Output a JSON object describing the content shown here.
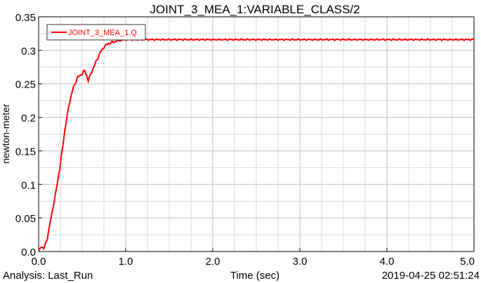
{
  "chart_data": {
    "type": "line",
    "title": "JOINT_3_MEA_1:VARIABLE_CLASS/2",
    "xlabel": "Time (sec)",
    "ylabel": "newton-meter",
    "xlim": [
      0,
      5
    ],
    "ylim": [
      0,
      0.35
    ],
    "x_ticks": [
      "0.0",
      "1.0",
      "2.0",
      "3.0",
      "4.0",
      "5.0"
    ],
    "y_ticks": [
      "0.0",
      "0.05",
      "0.1",
      "0.15",
      "0.2",
      "0.25",
      "0.3",
      "0.35"
    ],
    "grid": true,
    "legend_position": "top-left",
    "series": [
      {
        "name": "JOINT_3_MEA_1.Q",
        "color": "#ff0000",
        "x": [
          0.0,
          0.03,
          0.06,
          0.1,
          0.15,
          0.2,
          0.25,
          0.3,
          0.35,
          0.4,
          0.45,
          0.5,
          0.53,
          0.57,
          0.6,
          0.65,
          0.7,
          0.75,
          0.8,
          0.85,
          0.9,
          0.95,
          1.0,
          1.2,
          1.5,
          2.0,
          2.5,
          3.0,
          3.5,
          4.0,
          4.5,
          5.0
        ],
        "values": [
          0.0,
          0.008,
          0.004,
          0.02,
          0.055,
          0.09,
          0.13,
          0.18,
          0.22,
          0.245,
          0.26,
          0.265,
          0.27,
          0.255,
          0.265,
          0.28,
          0.295,
          0.305,
          0.31,
          0.312,
          0.314,
          0.315,
          0.316,
          0.316,
          0.316,
          0.316,
          0.316,
          0.316,
          0.316,
          0.316,
          0.316,
          0.316
        ]
      }
    ],
    "footer": {
      "analysis": "Analysis: Last_Run",
      "timestamp": "2019-04-25 02:51:24"
    }
  }
}
